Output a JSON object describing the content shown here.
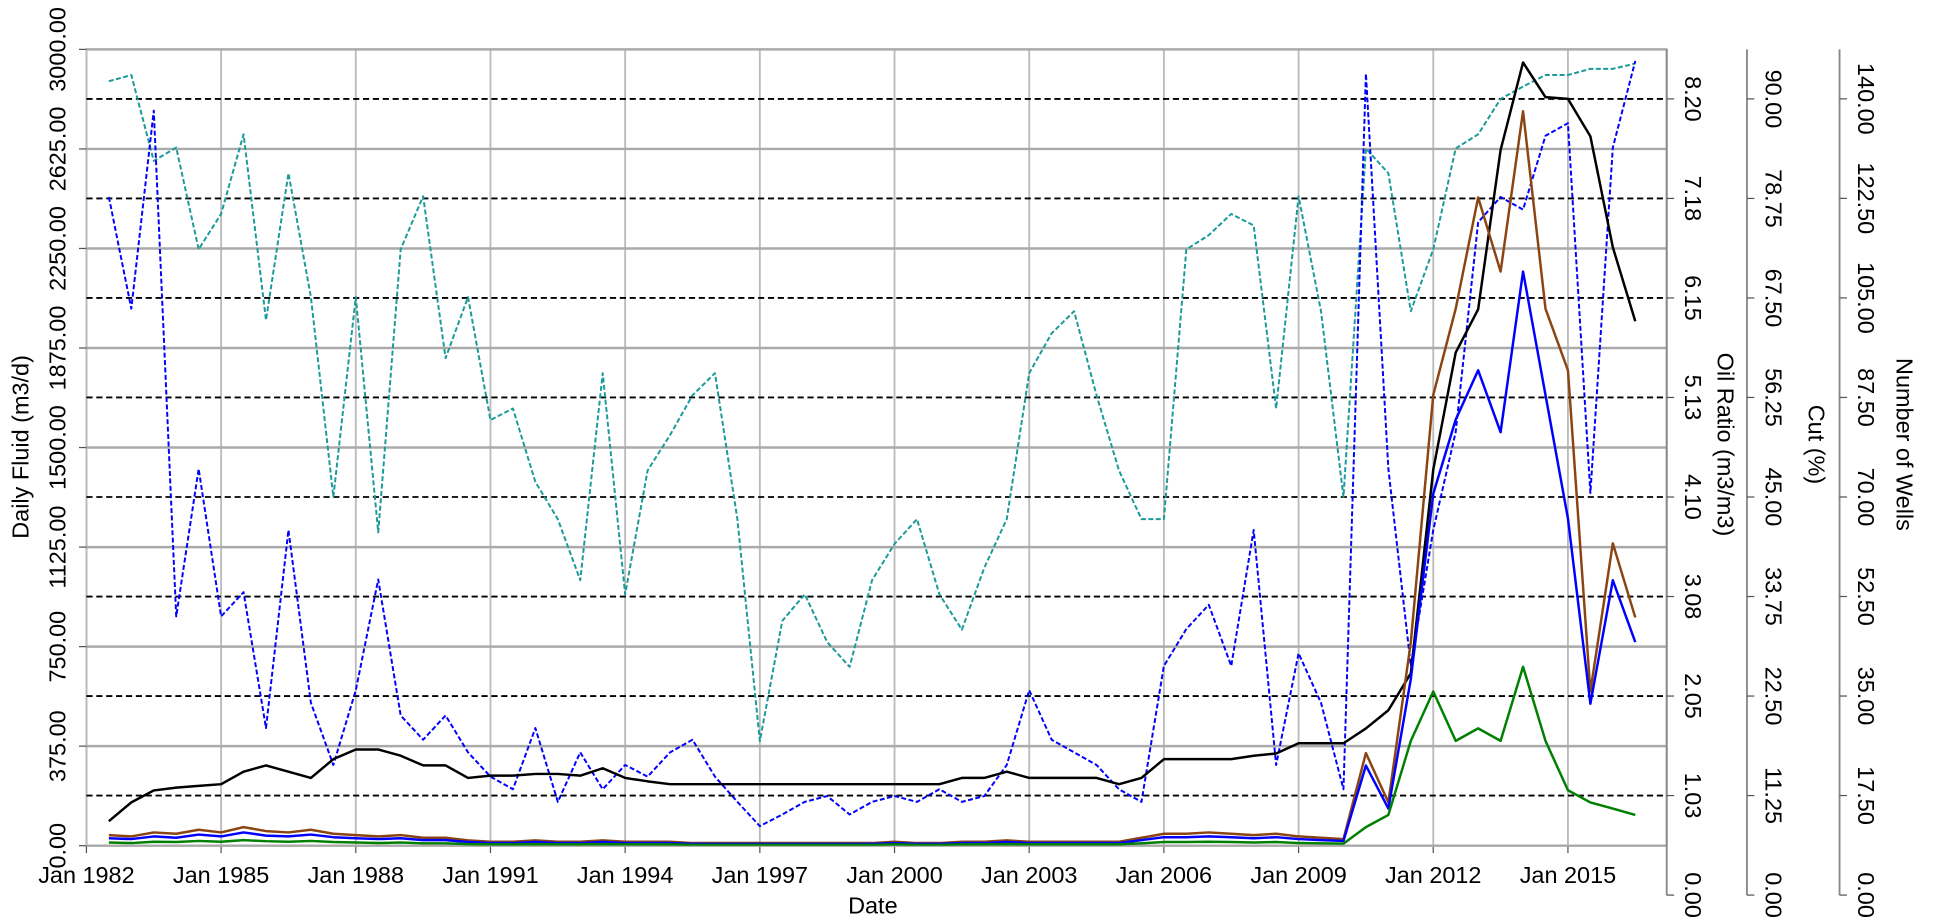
{
  "chart_data": {
    "type": "line",
    "xlabel": "Date",
    "ylabel": "Daily Fluid (m3/d)",
    "y2label": "Oil Ratio (m3/m3)",
    "y3label": "Cut (%)",
    "y4label": "Number of Wells",
    "grid": true,
    "xlim": [
      1982,
      2017.2
    ],
    "xticks": [
      {
        "value": 1982,
        "label": "Jan 1982"
      },
      {
        "value": 1985,
        "label": "Jan 1985"
      },
      {
        "value": 1988,
        "label": "Jan 1988"
      },
      {
        "value": 1991,
        "label": "Jan 1991"
      },
      {
        "value": 1994,
        "label": "Jan 1994"
      },
      {
        "value": 1997,
        "label": "Jan 1997"
      },
      {
        "value": 2000,
        "label": "Jan 2000"
      },
      {
        "value": 2003,
        "label": "Jan 2003"
      },
      {
        "value": 2006,
        "label": "Jan 2006"
      },
      {
        "value": 2009,
        "label": "Jan 2009"
      },
      {
        "value": 2012,
        "label": "Jan 2012"
      },
      {
        "value": 2015,
        "label": "Jan 2015"
      }
    ],
    "ylim": [
      0,
      3000
    ],
    "yticks": [
      {
        "value": 0,
        "label": "0.00"
      },
      {
        "value": 375,
        "label": "375.00"
      },
      {
        "value": 750,
        "label": "750.00"
      },
      {
        "value": 1125,
        "label": "1125.00"
      },
      {
        "value": 1500,
        "label": "1500.00"
      },
      {
        "value": 1875,
        "label": "1875.00"
      },
      {
        "value": 2250,
        "label": "2250.00"
      },
      {
        "value": 2625,
        "label": "2625.00"
      },
      {
        "value": 3000,
        "label": "3000.00"
      }
    ],
    "y2lim": [
      0,
      8.71
    ],
    "y2ticks": [
      {
        "value": 0,
        "label": "0.00"
      },
      {
        "value": 1.025,
        "label": "1.03"
      },
      {
        "value": 2.05,
        "label": "2.05"
      },
      {
        "value": 3.075,
        "label": "3.08"
      },
      {
        "value": 4.1,
        "label": "4.10"
      },
      {
        "value": 5.125,
        "label": "5.13"
      },
      {
        "value": 6.15,
        "label": "6.15"
      },
      {
        "value": 7.175,
        "label": "7.18"
      },
      {
        "value": 8.2,
        "label": "8.20"
      }
    ],
    "y3lim": [
      0,
      95.6
    ],
    "y3ticks": [
      {
        "value": 0,
        "label": "0.00"
      },
      {
        "value": 11.25,
        "label": "11.25"
      },
      {
        "value": 22.5,
        "label": "22.50"
      },
      {
        "value": 33.75,
        "label": "33.75"
      },
      {
        "value": 45,
        "label": "45.00"
      },
      {
        "value": 56.25,
        "label": "56.25"
      },
      {
        "value": 67.5,
        "label": "67.50"
      },
      {
        "value": 78.75,
        "label": "78.75"
      },
      {
        "value": 90,
        "label": "90.00"
      }
    ],
    "y4lim": [
      0,
      148.7
    ],
    "y4ticks": [
      {
        "value": 0,
        "label": "0.00"
      },
      {
        "value": 17.5,
        "label": "17.50"
      },
      {
        "value": 35,
        "label": "35.00"
      },
      {
        "value": 52.5,
        "label": "52.50"
      },
      {
        "value": 70,
        "label": "70.00"
      },
      {
        "value": 87.5,
        "label": "87.50"
      },
      {
        "value": 105,
        "label": "105.00"
      },
      {
        "value": 122.5,
        "label": "122.50"
      },
      {
        "value": 140,
        "label": "140.00"
      }
    ],
    "x": [
      1982.5,
      1983,
      1983.5,
      1984,
      1984.5,
      1985,
      1985.5,
      1986,
      1986.5,
      1987,
      1987.5,
      1988,
      1988.5,
      1989,
      1989.5,
      1990,
      1990.5,
      1991,
      1991.5,
      1992,
      1992.5,
      1993,
      1993.5,
      1994,
      1994.5,
      1995,
      1995.5,
      1996,
      1996.5,
      1997,
      1997.5,
      1998,
      1998.5,
      1999,
      1999.5,
      2000,
      2000.5,
      2001,
      2001.5,
      2002,
      2002.5,
      2003,
      2003.5,
      2004,
      2004.5,
      2005,
      2005.5,
      2006,
      2006.5,
      2007,
      2007.5,
      2008,
      2008.5,
      2009,
      2009.5,
      2010,
      2010.5,
      2011,
      2011.5,
      2012,
      2012.5,
      2013,
      2013.5,
      2014,
      2014.5,
      2015,
      2015.5,
      2016,
      2016.5
    ],
    "series": [
      {
        "color": "#1a9a9a",
        "style": "dashed",
        "axis": "y3",
        "values": [
          92,
          92.7,
          83,
          84.5,
          73,
          77,
          86,
          65,
          81.6,
          67.6,
          45,
          67.6,
          41,
          73,
          79,
          60.7,
          67.6,
          53.7,
          55,
          46.7,
          42.5,
          35.6,
          59,
          34,
          48,
          52,
          56.5,
          59,
          42.5,
          17.4,
          31,
          34,
          28.6,
          25.8,
          35.6,
          39.7,
          42.5,
          34,
          30,
          37,
          42.5,
          59,
          63.5,
          66,
          56.5,
          48,
          42.5,
          42.5,
          73,
          74.6,
          77,
          75.7,
          55,
          79,
          66,
          45,
          84.4,
          81.6,
          66,
          73,
          84.4,
          86,
          90,
          91.4,
          92.7,
          92.7,
          93.4,
          93.4,
          94
        ]
      },
      {
        "color": "#0000ff",
        "style": "dashed",
        "axis": "y2",
        "values": [
          7.19,
          6.04,
          8.08,
          2.87,
          4.39,
          2.87,
          3.12,
          1.72,
          3.76,
          1.98,
          1.34,
          2.11,
          3.25,
          1.85,
          1.6,
          1.85,
          1.47,
          1.22,
          1.09,
          1.72,
          0.96,
          1.47,
          1.09,
          1.34,
          1.22,
          1.47,
          1.6,
          1.22,
          0.96,
          0.71,
          0.83,
          0.96,
          1.02,
          0.83,
          0.96,
          1.02,
          0.96,
          1.09,
          0.96,
          1.02,
          1.34,
          2.11,
          1.6,
          1.47,
          1.34,
          1.09,
          0.96,
          2.36,
          2.74,
          2.99,
          2.36,
          3.76,
          1.34,
          2.49,
          1.98,
          1.09,
          8.46,
          4.39,
          2.36,
          3.76,
          4.77,
          6.93,
          7.19,
          7.06,
          7.82,
          7.95,
          4.14,
          7.7,
          8.59
        ]
      },
      {
        "color": "#000000",
        "style": "solid",
        "axis": "y4",
        "values": [
          13,
          16.3,
          18.4,
          18.9,
          19.2,
          19.5,
          21.7,
          22.8,
          21.7,
          20.6,
          23.9,
          25.6,
          25.6,
          24.5,
          22.8,
          22.8,
          20.6,
          21,
          21,
          21.3,
          21.3,
          21,
          22.3,
          20.6,
          20,
          19.5,
          19.5,
          19.5,
          19.5,
          19.5,
          19.5,
          19.5,
          19.5,
          19.5,
          19.5,
          19.5,
          19.5,
          19.5,
          20.6,
          20.6,
          21.7,
          20.6,
          20.6,
          20.6,
          20.6,
          19.5,
          20.6,
          23.9,
          23.9,
          23.9,
          23.9,
          24.5,
          24.9,
          26.7,
          26.7,
          26.7,
          29.3,
          32.5,
          39,
          74.8,
          95.4,
          103,
          131,
          146.4,
          140.3,
          140,
          133.4,
          113.9,
          100.9
        ]
      },
      {
        "color": "#8b4513",
        "style": "solid",
        "axis": "y",
        "values": [
          40,
          35,
          50,
          45,
          60,
          50,
          70,
          55,
          50,
          60,
          45,
          40,
          35,
          40,
          30,
          30,
          20,
          15,
          15,
          20,
          15,
          15,
          20,
          15,
          15,
          15,
          10,
          10,
          10,
          10,
          10,
          10,
          10,
          10,
          10,
          15,
          10,
          10,
          15,
          15,
          20,
          15,
          15,
          15,
          15,
          15,
          30,
          45,
          45,
          50,
          45,
          40,
          45,
          35,
          30,
          25,
          349,
          163,
          767,
          1698,
          2023,
          2442,
          2163,
          2767,
          2023,
          1791,
          581,
          1139,
          860
        ]
      },
      {
        "color": "#0000ff",
        "style": "solid",
        "axis": "y",
        "values": [
          28,
          25,
          35,
          30,
          42,
          35,
          50,
          38,
          35,
          42,
          32,
          28,
          25,
          28,
          21,
          21,
          14,
          10,
          10,
          14,
          10,
          10,
          14,
          10,
          10,
          10,
          7,
          7,
          7,
          7,
          7,
          7,
          7,
          7,
          7,
          10,
          7,
          7,
          10,
          10,
          14,
          10,
          10,
          10,
          10,
          10,
          21,
          32,
          32,
          35,
          32,
          28,
          32,
          25,
          21,
          18,
          302,
          140,
          628,
          1326,
          1605,
          1791,
          1558,
          2163,
          1698,
          1233,
          535,
          1000,
          767
        ]
      },
      {
        "color": "#008000",
        "style": "solid",
        "axis": "y",
        "values": [
          12,
          10,
          15,
          14,
          18,
          15,
          21,
          17,
          15,
          18,
          14,
          12,
          10,
          12,
          9,
          9,
          6,
          5,
          5,
          6,
          5,
          5,
          6,
          5,
          5,
          5,
          3,
          3,
          3,
          3,
          3,
          3,
          3,
          3,
          3,
          5,
          3,
          3,
          5,
          5,
          6,
          5,
          5,
          5,
          5,
          5,
          9,
          14,
          14,
          15,
          14,
          12,
          14,
          10,
          9,
          8,
          70,
          116,
          395,
          581,
          395,
          442,
          395,
          674,
          395,
          209,
          163,
          140,
          116
        ]
      }
    ]
  }
}
